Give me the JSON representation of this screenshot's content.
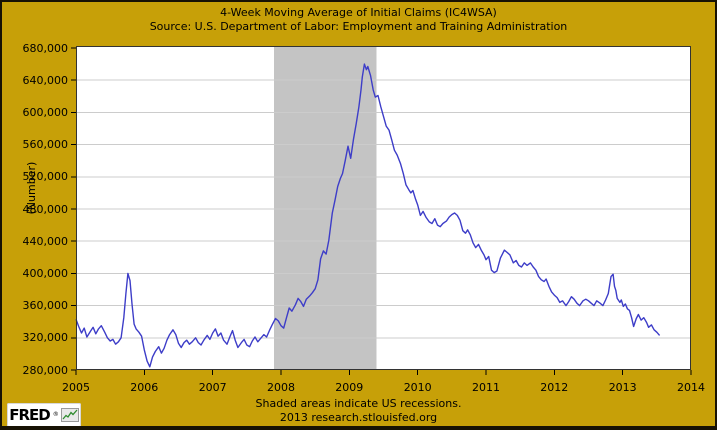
{
  "header": {
    "title": "4-Week Moving Average of Initial Claims (IC4WSA)",
    "source": "Source: U.S. Department of Labor: Employment and Training Administration"
  },
  "footer": {
    "note": "Shaded areas indicate US recessions.",
    "credit": "2013 research.stlouisfed.org"
  },
  "logo": {
    "text": "FRED",
    "registered": "®"
  },
  "colors": {
    "background": "#C7A008",
    "plot_background": "#FFFFFF",
    "line": "#3D3DC8",
    "recession_band": "#C4C4C4",
    "gridline": "#CCCCCC",
    "axis": "#333333",
    "tick": "#000000",
    "text": "#000000",
    "logo_sparkline": "#2E8B2E"
  },
  "chart_data": {
    "type": "line",
    "title": "4-Week Moving Average of Initial Claims (IC4WSA)",
    "subtitle": "Source: U.S. Department of Labor: Employment and Training Administration",
    "xlabel": "",
    "ylabel": "(Number)",
    "xlim": [
      2005,
      2014
    ],
    "ylim": [
      280000,
      682500
    ],
    "grid": "horizontal",
    "legend_position": "none",
    "x_ticks": [
      2005,
      2006,
      2007,
      2008,
      2009,
      2010,
      2011,
      2012,
      2013,
      2014
    ],
    "x_tick_labels": [
      "2005",
      "2006",
      "2007",
      "2008",
      "2009",
      "2010",
      "2011",
      "2012",
      "2013",
      "2014"
    ],
    "y_ticks": [
      280000,
      320000,
      360000,
      400000,
      440000,
      480000,
      520000,
      560000,
      600000,
      640000,
      680000
    ],
    "y_tick_labels": [
      "280,000",
      "320,000",
      "360,000",
      "400,000",
      "440,000",
      "480,000",
      "520,000",
      "560,000",
      "600,000",
      "640,000",
      "680,000"
    ],
    "recessions": [
      {
        "start": 2007.9,
        "end": 2009.4,
        "label": "US recession"
      }
    ],
    "series": [
      {
        "name": "IC4WSA",
        "color": "#3D3DC8",
        "points": [
          [
            2005.0,
            343000
          ],
          [
            2005.04,
            334000
          ],
          [
            2005.08,
            326000
          ],
          [
            2005.12,
            332000
          ],
          [
            2005.16,
            321000
          ],
          [
            2005.21,
            328000
          ],
          [
            2005.25,
            333000
          ],
          [
            2005.29,
            325000
          ],
          [
            2005.33,
            331000
          ],
          [
            2005.37,
            335000
          ],
          [
            2005.42,
            327000
          ],
          [
            2005.46,
            320000
          ],
          [
            2005.5,
            316000
          ],
          [
            2005.54,
            318000
          ],
          [
            2005.58,
            312000
          ],
          [
            2005.62,
            315000
          ],
          [
            2005.66,
            320000
          ],
          [
            2005.7,
            345000
          ],
          [
            2005.73,
            375000
          ],
          [
            2005.76,
            400000
          ],
          [
            2005.79,
            391000
          ],
          [
            2005.82,
            362000
          ],
          [
            2005.85,
            337000
          ],
          [
            2005.88,
            331000
          ],
          [
            2005.92,
            327000
          ],
          [
            2005.96,
            322000
          ],
          [
            2006.0,
            305000
          ],
          [
            2006.04,
            291000
          ],
          [
            2006.08,
            284000
          ],
          [
            2006.12,
            296000
          ],
          [
            2006.16,
            303000
          ],
          [
            2006.21,
            309000
          ],
          [
            2006.25,
            301000
          ],
          [
            2006.29,
            307000
          ],
          [
            2006.33,
            317000
          ],
          [
            2006.37,
            324000
          ],
          [
            2006.42,
            330000
          ],
          [
            2006.46,
            324000
          ],
          [
            2006.5,
            313000
          ],
          [
            2006.54,
            308000
          ],
          [
            2006.58,
            314000
          ],
          [
            2006.62,
            317000
          ],
          [
            2006.66,
            312000
          ],
          [
            2006.7,
            315000
          ],
          [
            2006.75,
            320000
          ],
          [
            2006.79,
            314000
          ],
          [
            2006.83,
            311000
          ],
          [
            2006.87,
            317000
          ],
          [
            2006.92,
            323000
          ],
          [
            2006.96,
            318000
          ],
          [
            2007.0,
            326000
          ],
          [
            2007.04,
            331000
          ],
          [
            2007.08,
            322000
          ],
          [
            2007.12,
            326000
          ],
          [
            2007.16,
            317000
          ],
          [
            2007.21,
            312000
          ],
          [
            2007.25,
            321000
          ],
          [
            2007.29,
            329000
          ],
          [
            2007.33,
            317000
          ],
          [
            2007.37,
            308000
          ],
          [
            2007.42,
            314000
          ],
          [
            2007.46,
            318000
          ],
          [
            2007.5,
            311000
          ],
          [
            2007.54,
            309000
          ],
          [
            2007.58,
            316000
          ],
          [
            2007.62,
            321000
          ],
          [
            2007.66,
            315000
          ],
          [
            2007.7,
            319000
          ],
          [
            2007.75,
            324000
          ],
          [
            2007.79,
            321000
          ],
          [
            2007.83,
            329000
          ],
          [
            2007.87,
            336000
          ],
          [
            2007.92,
            344000
          ],
          [
            2007.96,
            341000
          ],
          [
            2008.0,
            335000
          ],
          [
            2008.04,
            332000
          ],
          [
            2008.08,
            345000
          ],
          [
            2008.12,
            357000
          ],
          [
            2008.16,
            353000
          ],
          [
            2008.21,
            361000
          ],
          [
            2008.25,
            369000
          ],
          [
            2008.29,
            365000
          ],
          [
            2008.33,
            359000
          ],
          [
            2008.37,
            368000
          ],
          [
            2008.42,
            372000
          ],
          [
            2008.46,
            376000
          ],
          [
            2008.5,
            381000
          ],
          [
            2008.54,
            392000
          ],
          [
            2008.58,
            418000
          ],
          [
            2008.62,
            428000
          ],
          [
            2008.66,
            424000
          ],
          [
            2008.7,
            441000
          ],
          [
            2008.75,
            475000
          ],
          [
            2008.79,
            491000
          ],
          [
            2008.83,
            508000
          ],
          [
            2008.87,
            518000
          ],
          [
            2008.9,
            524000
          ],
          [
            2008.94,
            540000
          ],
          [
            2008.98,
            558000
          ],
          [
            2009.02,
            543000
          ],
          [
            2009.06,
            566000
          ],
          [
            2009.1,
            586000
          ],
          [
            2009.14,
            607000
          ],
          [
            2009.17,
            628000
          ],
          [
            2009.19,
            644000
          ],
          [
            2009.22,
            660000
          ],
          [
            2009.25,
            653000
          ],
          [
            2009.27,
            657000
          ],
          [
            2009.31,
            646000
          ],
          [
            2009.35,
            628000
          ],
          [
            2009.38,
            619000
          ],
          [
            2009.42,
            621000
          ],
          [
            2009.46,
            607000
          ],
          [
            2009.5,
            595000
          ],
          [
            2009.54,
            583000
          ],
          [
            2009.58,
            578000
          ],
          [
            2009.62,
            566000
          ],
          [
            2009.66,
            553000
          ],
          [
            2009.7,
            547000
          ],
          [
            2009.75,
            536000
          ],
          [
            2009.79,
            524000
          ],
          [
            2009.83,
            510000
          ],
          [
            2009.87,
            504000
          ],
          [
            2009.9,
            500000
          ],
          [
            2009.93,
            503000
          ],
          [
            2009.97,
            492000
          ],
          [
            2010.0,
            485000
          ],
          [
            2010.04,
            472000
          ],
          [
            2010.08,
            477000
          ],
          [
            2010.12,
            470000
          ],
          [
            2010.17,
            464000
          ],
          [
            2010.21,
            462000
          ],
          [
            2010.25,
            468000
          ],
          [
            2010.29,
            460000
          ],
          [
            2010.33,
            458000
          ],
          [
            2010.37,
            462000
          ],
          [
            2010.42,
            465000
          ],
          [
            2010.46,
            470000
          ],
          [
            2010.5,
            473000
          ],
          [
            2010.54,
            475000
          ],
          [
            2010.58,
            472000
          ],
          [
            2010.62,
            466000
          ],
          [
            2010.66,
            453000
          ],
          [
            2010.7,
            450000
          ],
          [
            2010.73,
            454000
          ],
          [
            2010.77,
            448000
          ],
          [
            2010.81,
            438000
          ],
          [
            2010.85,
            432000
          ],
          [
            2010.89,
            436000
          ],
          [
            2010.93,
            429000
          ],
          [
            2010.97,
            423000
          ],
          [
            2011.0,
            417000
          ],
          [
            2011.04,
            421000
          ],
          [
            2011.08,
            404000
          ],
          [
            2011.12,
            401000
          ],
          [
            2011.16,
            403000
          ],
          [
            2011.21,
            419000
          ],
          [
            2011.27,
            429000
          ],
          [
            2011.31,
            426000
          ],
          [
            2011.35,
            423000
          ],
          [
            2011.4,
            413000
          ],
          [
            2011.44,
            416000
          ],
          [
            2011.48,
            410000
          ],
          [
            2011.52,
            408000
          ],
          [
            2011.56,
            413000
          ],
          [
            2011.6,
            410000
          ],
          [
            2011.65,
            413000
          ],
          [
            2011.69,
            408000
          ],
          [
            2011.73,
            404000
          ],
          [
            2011.77,
            396000
          ],
          [
            2011.81,
            392000
          ],
          [
            2011.85,
            390000
          ],
          [
            2011.88,
            393000
          ],
          [
            2011.92,
            384000
          ],
          [
            2011.96,
            377000
          ],
          [
            2012.0,
            373000
          ],
          [
            2012.04,
            370000
          ],
          [
            2012.08,
            364000
          ],
          [
            2012.12,
            366000
          ],
          [
            2012.17,
            360000
          ],
          [
            2012.21,
            365000
          ],
          [
            2012.25,
            371000
          ],
          [
            2012.29,
            368000
          ],
          [
            2012.33,
            363000
          ],
          [
            2012.37,
            360000
          ],
          [
            2012.42,
            366000
          ],
          [
            2012.46,
            368000
          ],
          [
            2012.5,
            366000
          ],
          [
            2012.54,
            363000
          ],
          [
            2012.58,
            360000
          ],
          [
            2012.62,
            366000
          ],
          [
            2012.67,
            363000
          ],
          [
            2012.71,
            360000
          ],
          [
            2012.75,
            367000
          ],
          [
            2012.79,
            375000
          ],
          [
            2012.83,
            396000
          ],
          [
            2012.86,
            399000
          ],
          [
            2012.88,
            384000
          ],
          [
            2012.9,
            379000
          ],
          [
            2012.92,
            369000
          ],
          [
            2012.96,
            364000
          ],
          [
            2012.98,
            367000
          ],
          [
            2013.01,
            359000
          ],
          [
            2013.04,
            362000
          ],
          [
            2013.07,
            356000
          ],
          [
            2013.1,
            354000
          ],
          [
            2013.13,
            345000
          ],
          [
            2013.16,
            334000
          ],
          [
            2013.2,
            344000
          ],
          [
            2013.23,
            349000
          ],
          [
            2013.27,
            342000
          ],
          [
            2013.31,
            345000
          ],
          [
            2013.35,
            339000
          ],
          [
            2013.38,
            333000
          ],
          [
            2013.42,
            336000
          ],
          [
            2013.46,
            330000
          ],
          [
            2013.5,
            327000
          ],
          [
            2013.54,
            323000
          ]
        ]
      }
    ]
  }
}
